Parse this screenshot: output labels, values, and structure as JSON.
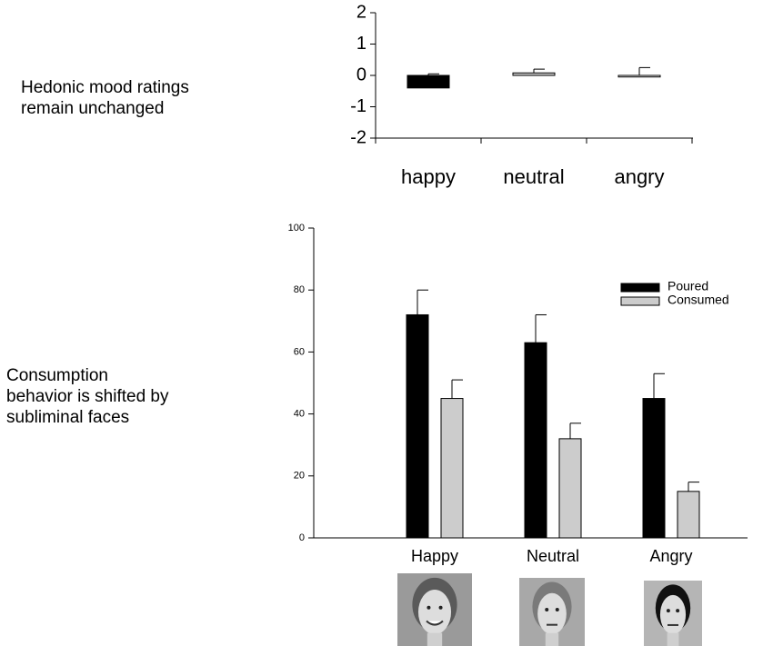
{
  "chart_data": [
    {
      "type": "bar",
      "annotation": [
        "Hedonic mood ratings",
        "remain unchanged"
      ],
      "categories": [
        "happy",
        "neutral",
        "angry"
      ],
      "values": [
        -0.4,
        0.08,
        -0.05
      ],
      "errors": [
        0.45,
        0.12,
        0.3
      ],
      "colors": [
        "#000000",
        "#cccccc",
        "#ffffff"
      ],
      "ylim": [
        -2,
        2
      ],
      "yticks": [
        -2,
        -1,
        0,
        1,
        2
      ]
    },
    {
      "type": "bar",
      "annotation": [
        "Consumption",
        "behavior is shifted by",
        "subliminal faces"
      ],
      "categories": [
        "Happy",
        "Neutral",
        "Angry"
      ],
      "series": [
        {
          "name": "Poured",
          "color": "#000000",
          "values": [
            72,
            63,
            45
          ],
          "errors": [
            8,
            9,
            8
          ]
        },
        {
          "name": "Consumed",
          "color": "#cccccc",
          "values": [
            45,
            32,
            15
          ],
          "errors": [
            6,
            5,
            3
          ]
        }
      ],
      "ylim": [
        0,
        100
      ],
      "yticks": [
        0,
        20,
        40,
        60,
        80,
        100
      ],
      "legend": "upper-right"
    }
  ]
}
